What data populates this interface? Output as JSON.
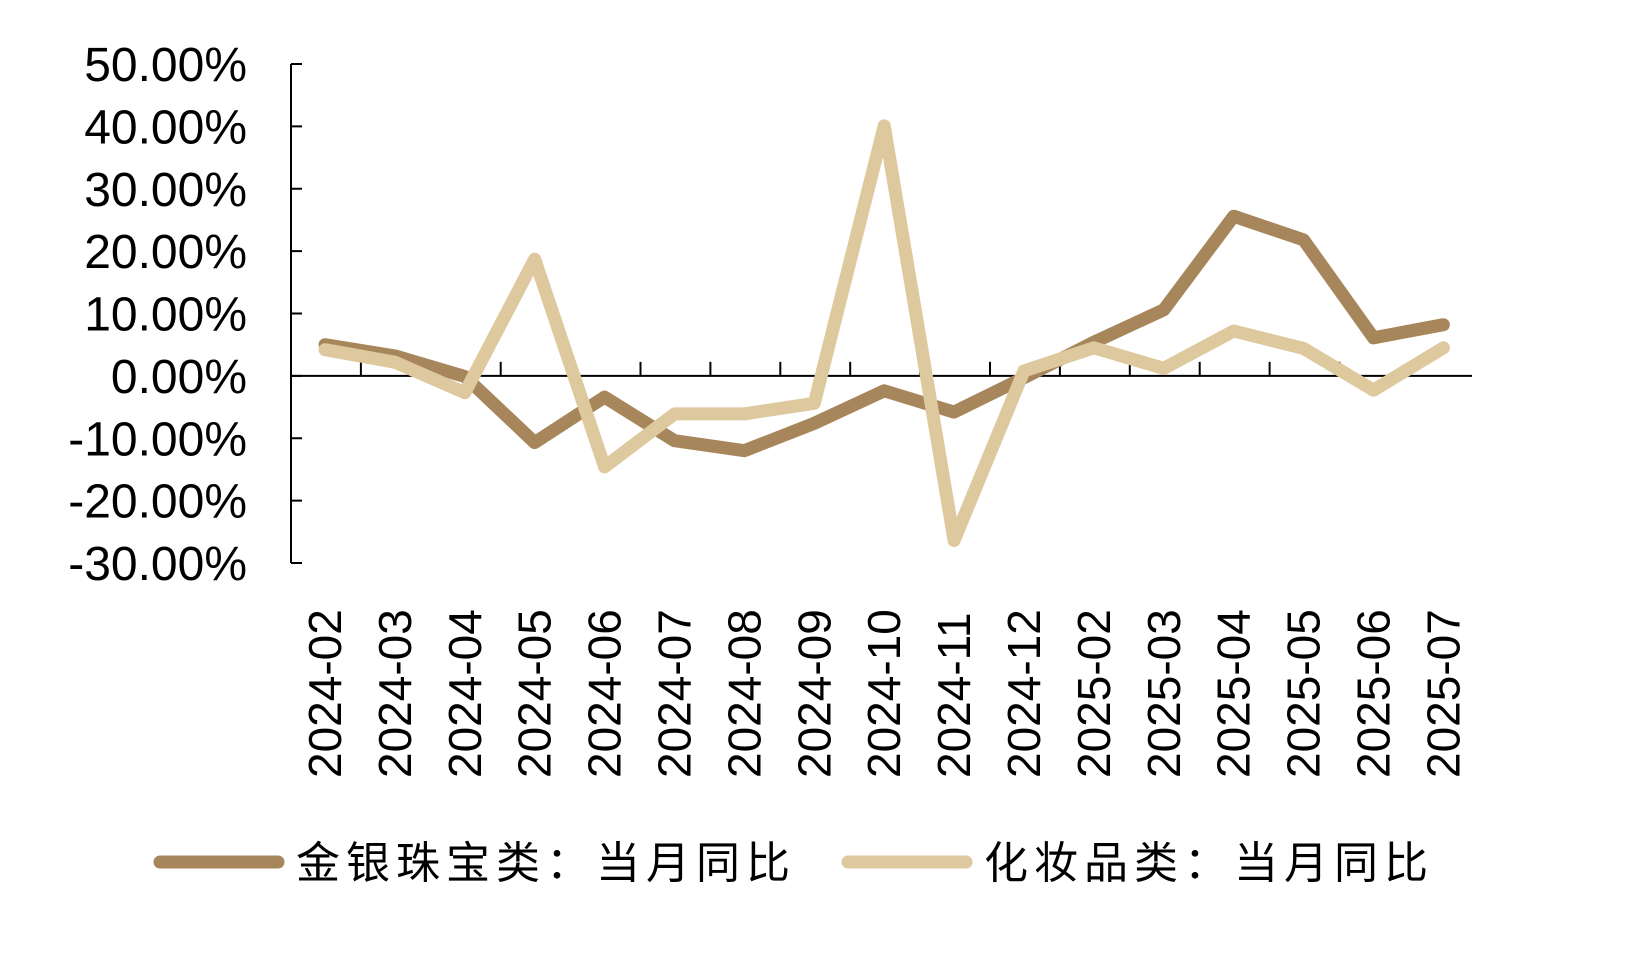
{
  "chart_data": {
    "type": "line",
    "title": "",
    "xlabel": "",
    "ylabel": "",
    "categories": [
      "2024-02",
      "2024-03",
      "2024-04",
      "2024-05",
      "2024-06",
      "2024-07",
      "2024-08",
      "2024-09",
      "2024-10",
      "2024-11",
      "2024-12",
      "2025-02",
      "2025-03",
      "2025-04",
      "2025-05",
      "2025-06",
      "2025-07"
    ],
    "y_ticks": [
      "50.00%",
      "40.00%",
      "30.00%",
      "20.00%",
      "10.00%",
      "0.00%",
      "-10.00%",
      "-20.00%",
      "-30.00%"
    ],
    "ylim": [
      -30,
      50
    ],
    "y_unit": "%",
    "grid": false,
    "legend_position": "bottom",
    "series": [
      {
        "name": "金银珠宝类：当月同比",
        "color": "#A8865C",
        "values": [
          5.0,
          3.2,
          -0.1,
          -10.7,
          -3.4,
          -10.4,
          -12.0,
          -7.6,
          -2.4,
          -5.8,
          -0.3,
          5.4,
          10.6,
          25.6,
          21.8,
          6.1,
          8.2
        ]
      },
      {
        "name": "化妆品类：当月同比",
        "color": "#DEC89E",
        "values": [
          4.2,
          2.2,
          -2.7,
          18.7,
          -14.6,
          -6.1,
          -6.1,
          -4.4,
          40.1,
          -26.4,
          0.8,
          4.5,
          1.2,
          7.2,
          4.4,
          -2.3,
          4.5
        ]
      }
    ]
  }
}
